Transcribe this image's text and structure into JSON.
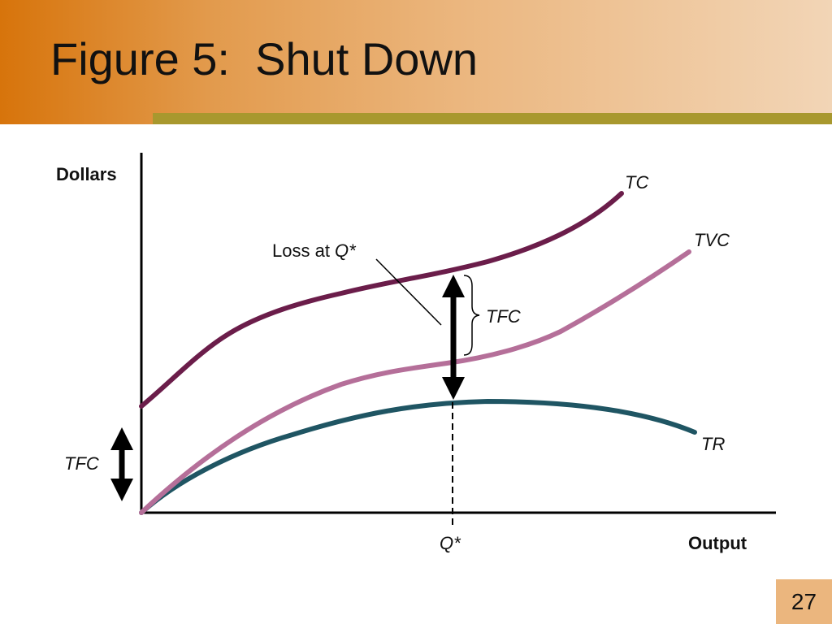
{
  "slide": {
    "title": "Figure 5:  Shut Down",
    "page_number": "27"
  },
  "diagram": {
    "y_axis_label": "Dollars",
    "x_axis_label": "Output",
    "quantity_label": "Q*",
    "curves": {
      "tc": {
        "label": "TC",
        "color": "#6b1d4a"
      },
      "tvc": {
        "label": "TVC",
        "color": "#b56f99"
      },
      "tr": {
        "label": "TR",
        "color": "#1f5563"
      }
    },
    "loss_annotation": {
      "prefix": "Loss at ",
      "emph": "Q*"
    },
    "tfc_bracket_label": "TFC",
    "tfc_axis_label": "TFC"
  }
}
